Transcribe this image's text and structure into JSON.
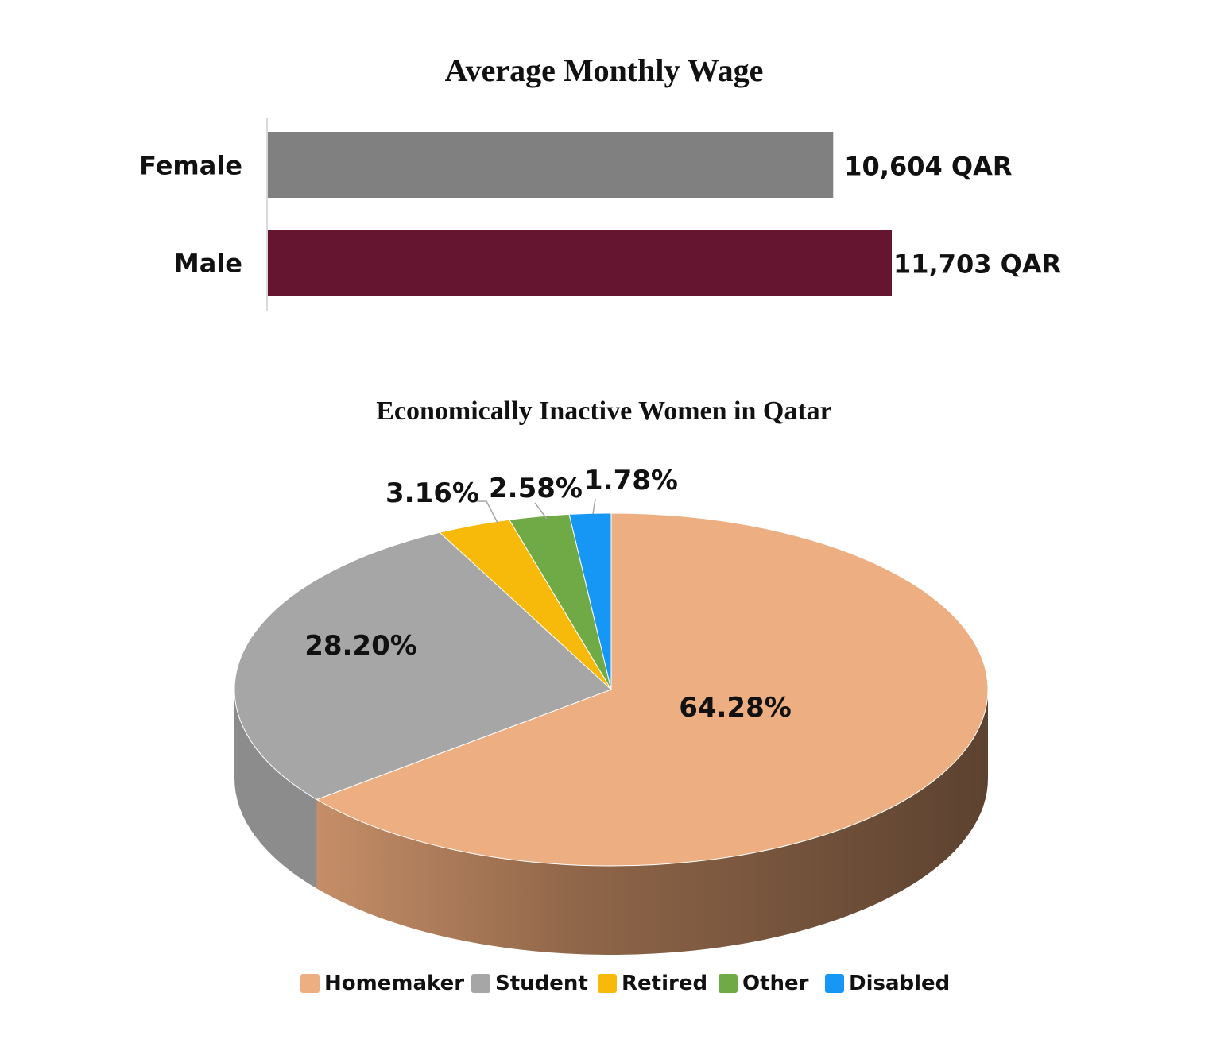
{
  "chart_data": [
    {
      "type": "bar",
      "orientation": "horizontal",
      "title": "Average Monthly  Wage",
      "categories": [
        "Female",
        "Male"
      ],
      "values": [
        10604,
        11703
      ],
      "value_labels": [
        "10,604 QAR",
        "11,703 QAR"
      ],
      "colors": [
        "#808080",
        "#651530"
      ],
      "xlim": [
        0,
        11703
      ],
      "xlabel": "",
      "ylabel": "",
      "grid": false
    },
    {
      "type": "pie",
      "style": "3d",
      "title": "Economically Inactive Women in Qatar",
      "categories": [
        "Homemaker",
        "Student",
        "Retired",
        "Other",
        "Disabled"
      ],
      "values": [
        64.28,
        28.2,
        3.16,
        2.58,
        1.78
      ],
      "value_labels": [
        "64.28%",
        "28.20%",
        "3.16%",
        "2.58%",
        "1.78%"
      ],
      "colors": [
        "#EDAF82",
        "#A6A6A6",
        "#F7BA0B",
        "#6FAA46",
        "#1797F5"
      ],
      "legend": "bottom"
    }
  ]
}
